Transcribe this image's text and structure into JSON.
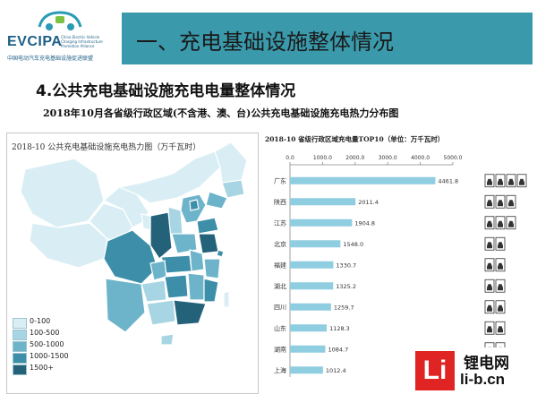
{
  "logo": {
    "name": "EVCIPA",
    "sub_en": "China Electric Vehicle Charging Infrastructure Promotion Alliance",
    "sub_cn": "中国电动汽车充电基础设施促进联盟"
  },
  "banner": {
    "title": "一、充电基础设施整体情况"
  },
  "section_title": "4.公共充电基础设施充电电量整体情况",
  "subtitle": "2018年10月各省级行政区域(不含港、澳、台)公共充电基础设施充电热力分布图",
  "map": {
    "title": "2018-10 公共充电基础设施充电热力图（万千瓦时）",
    "legend": [
      {
        "label": "0-100",
        "color": "#d9eef4"
      },
      {
        "label": "100-500",
        "color": "#a7d5e3"
      },
      {
        "label": "500-1000",
        "color": "#6db4cb"
      },
      {
        "label": "1000-1500",
        "color": "#3d8ea8"
      },
      {
        "label": "1500+",
        "color": "#24627a"
      }
    ]
  },
  "chart_data": {
    "type": "bar",
    "orientation": "horizontal",
    "title": "2018-10 省级行政区域充电量TOP10（单位：万千瓦时）",
    "categories": [
      "广东",
      "陕西",
      "江苏",
      "北京",
      "福建",
      "湖北",
      "四川",
      "山东",
      "湖南",
      "上海"
    ],
    "values": [
      4461.8,
      2011.4,
      1904.8,
      1548.0,
      1330.7,
      1325.2,
      1259.7,
      1128.3,
      1084.7,
      1012.4
    ],
    "value_labels": [
      "4461.8",
      "2011.4",
      "1904.8",
      "1548.0",
      "1330.7",
      "1325.2",
      "1259.7",
      "1128.3",
      "1084.7",
      "1012.4"
    ],
    "xlim": [
      0,
      5000
    ],
    "xticks": [
      0,
      1000,
      2000,
      3000,
      4000,
      5000
    ],
    "xtick_labels": [
      "0.0",
      "1000.0",
      "2000.0",
      "3000.0",
      "4000.0",
      "5000.0"
    ],
    "bar_color": "#8fcde0",
    "axis_position": "top",
    "grid": false,
    "icon_colors": [
      "#ffffff",
      "#ffffff",
      "#ffffff",
      "#ffffff",
      "#ffffff",
      "#ffffff",
      "#ffffff",
      "#ffffff",
      "#ffffff",
      "#ffffff"
    ]
  },
  "watermark": {
    "mark": "Li",
    "name": "锂电网",
    "url": "li-b.cn"
  }
}
